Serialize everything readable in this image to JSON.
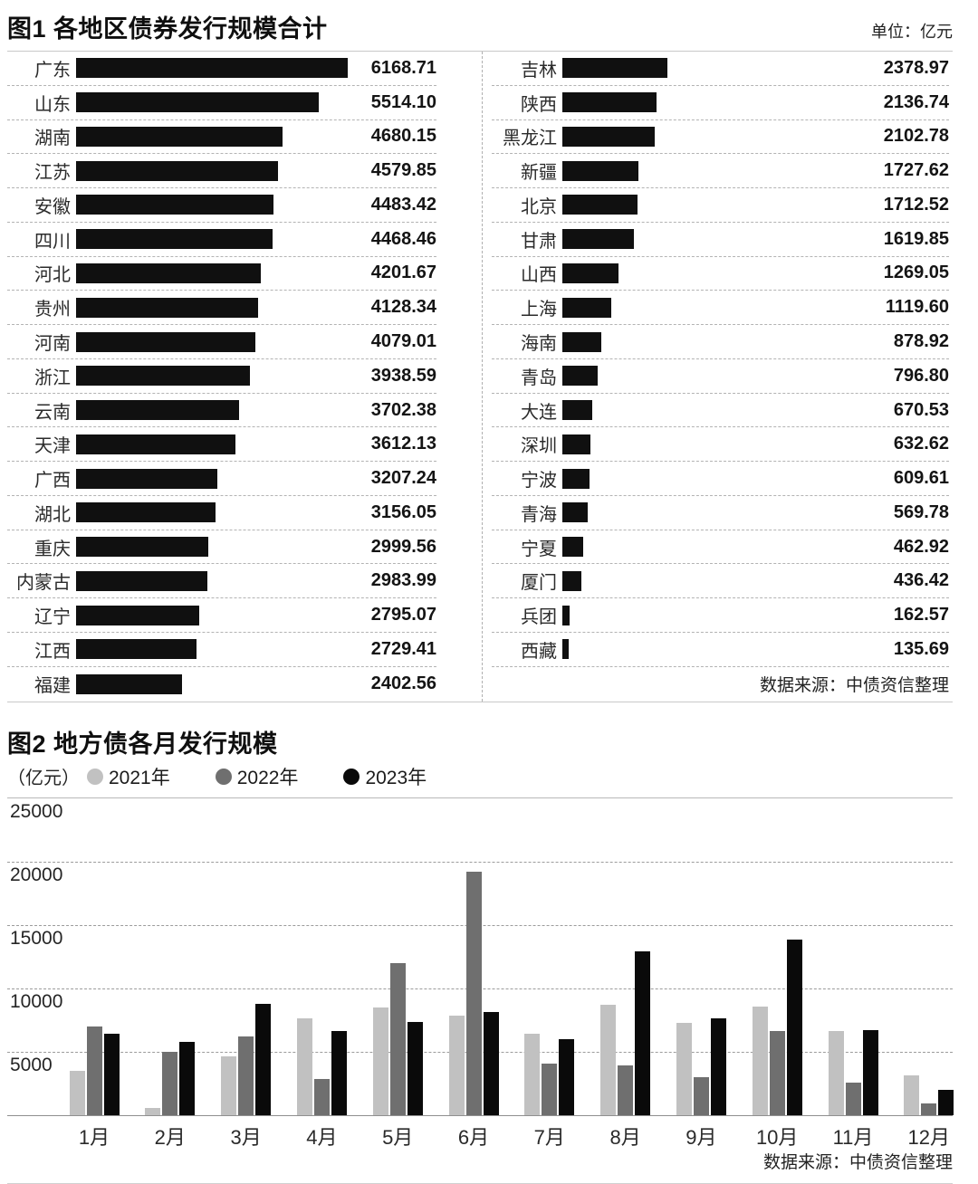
{
  "chart_data": [
    {
      "id": "chart1",
      "type": "bar",
      "orientation": "horizontal",
      "title": "图1 各地区债券发行规模合计",
      "unit_label": "单位：亿元",
      "source": "数据来源：中债资信整理",
      "bar_color": "#101010",
      "xlim": [
        0,
        6168.71
      ],
      "columns": [
        {
          "rows": [
            {
              "label": "广东",
              "value": 6168.71
            },
            {
              "label": "山东",
              "value": 5514.1
            },
            {
              "label": "湖南",
              "value": 4680.15
            },
            {
              "label": "江苏",
              "value": 4579.85
            },
            {
              "label": "安徽",
              "value": 4483.42
            },
            {
              "label": "四川",
              "value": 4468.46
            },
            {
              "label": "河北",
              "value": 4201.67
            },
            {
              "label": "贵州",
              "value": 4128.34
            },
            {
              "label": "河南",
              "value": 4079.01
            },
            {
              "label": "浙江",
              "value": 3938.59
            },
            {
              "label": "云南",
              "value": 3702.38
            },
            {
              "label": "天津",
              "value": 3612.13
            },
            {
              "label": "广西",
              "value": 3207.24
            },
            {
              "label": "湖北",
              "value": 3156.05
            },
            {
              "label": "重庆",
              "value": 2999.56
            },
            {
              "label": "内蒙古",
              "value": 2983.99
            },
            {
              "label": "辽宁",
              "value": 2795.07
            },
            {
              "label": "江西",
              "value": 2729.41
            },
            {
              "label": "福建",
              "value": 2402.56
            }
          ]
        },
        {
          "rows": [
            {
              "label": "吉林",
              "value": 2378.97
            },
            {
              "label": "陕西",
              "value": 2136.74
            },
            {
              "label": "黑龙江",
              "value": 2102.78
            },
            {
              "label": "新疆",
              "value": 1727.62
            },
            {
              "label": "北京",
              "value": 1712.52
            },
            {
              "label": "甘肃",
              "value": 1619.85
            },
            {
              "label": "山西",
              "value": 1269.05
            },
            {
              "label": "上海",
              "value": 1119.6
            },
            {
              "label": "海南",
              "value": 878.92
            },
            {
              "label": "青岛",
              "value": 796.8
            },
            {
              "label": "大连",
              "value": 670.53
            },
            {
              "label": "深圳",
              "value": 632.62
            },
            {
              "label": "宁波",
              "value": 609.61
            },
            {
              "label": "青海",
              "value": 569.78
            },
            {
              "label": "宁夏",
              "value": 462.92
            },
            {
              "label": "厦门",
              "value": 436.42
            },
            {
              "label": "兵团",
              "value": 162.57
            },
            {
              "label": "西藏",
              "value": 135.69
            }
          ]
        }
      ]
    },
    {
      "id": "chart2",
      "type": "bar",
      "title": "图2 地方债各月发行规模",
      "unit_label": "（亿元）",
      "source": "数据来源：中债资信整理",
      "categories": [
        "1月",
        "2月",
        "3月",
        "4月",
        "5月",
        "6月",
        "7月",
        "8月",
        "9月",
        "10月",
        "11月",
        "12月"
      ],
      "series": [
        {
          "name": "2021年",
          "color": "#c1c1c1",
          "values": [
            3500,
            600,
            4650,
            7600,
            8500,
            7800,
            6400,
            8700,
            7300,
            8550,
            6650,
            3150
          ]
        },
        {
          "name": "2022年",
          "color": "#6f6f6f",
          "values": [
            7000,
            5000,
            6200,
            2850,
            12000,
            19150,
            4050,
            3900,
            3000,
            6650,
            2550,
            900
          ]
        },
        {
          "name": "2023年",
          "color": "#0a0a0a",
          "values": [
            6400,
            5750,
            8750,
            6600,
            7350,
            8150,
            6000,
            12900,
            7650,
            13800,
            6700,
            2000
          ]
        }
      ],
      "ylim": [
        0,
        25000
      ],
      "yticks": [
        25000,
        20000,
        15000,
        10000,
        5000
      ],
      "grid": true,
      "legend_position": "top"
    }
  ]
}
